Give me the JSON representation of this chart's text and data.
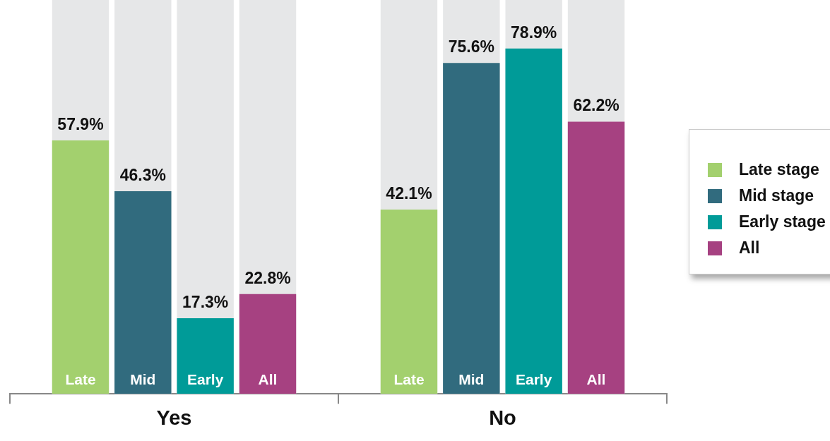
{
  "chart_data": {
    "type": "bar",
    "categories": [
      "Yes",
      "No"
    ],
    "series": [
      {
        "name": "Late stage",
        "color": "#a3d06e",
        "values": [
          57.9,
          42.1
        ],
        "value_labels": [
          "57.9%",
          "42.1%"
        ]
      },
      {
        "name": "Mid stage",
        "color": "#316b7e",
        "values": [
          46.3,
          75.6
        ],
        "value_labels": [
          "46.3%",
          "75.6%"
        ]
      },
      {
        "name": "Early stage",
        "color": "#009b98",
        "values": [
          17.3,
          78.9
        ],
        "value_labels": [
          "17.3%",
          "78.9%"
        ]
      },
      {
        "name": "All",
        "color": "#a64181",
        "values": [
          22.8,
          62.2
        ],
        "value_labels": [
          "22.8%",
          "62.2%"
        ]
      }
    ],
    "tick_labels": "x",
    "legend": "right",
    "annotations": [
      "Late",
      "Mid",
      "Early",
      "All",
      "Late",
      "Mid",
      "Early",
      "All"
    ]
  }
}
